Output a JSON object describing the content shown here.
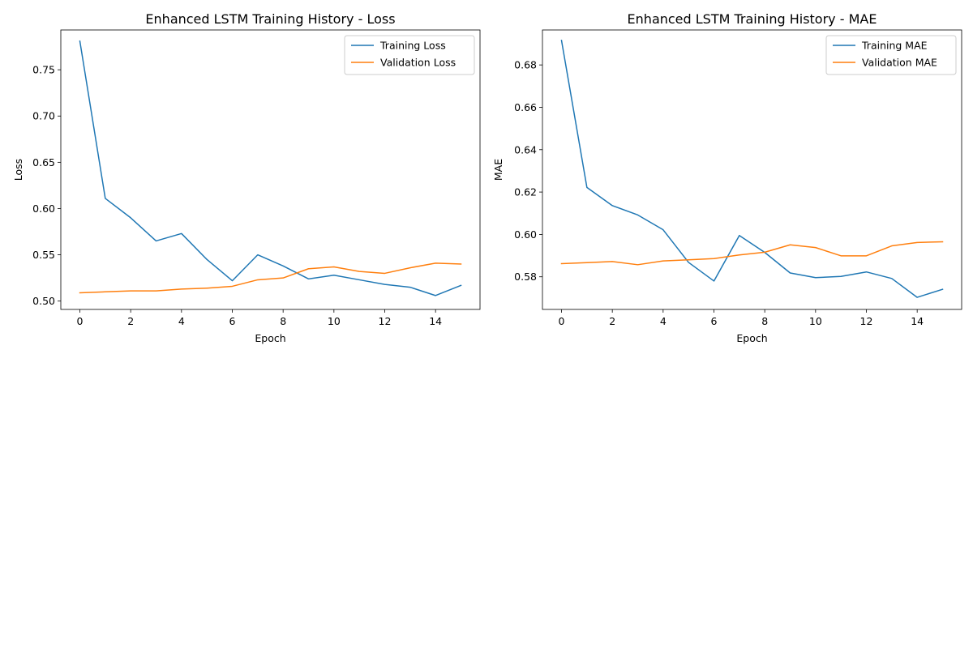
{
  "chart_data": [
    {
      "type": "line",
      "title": "Enhanced LSTM Training History - Loss",
      "xlabel": "Epoch",
      "ylabel": "Loss",
      "xlim": [
        -0.75,
        15.75
      ],
      "ylim": [
        0.491,
        0.793
      ],
      "xticks": [
        0,
        2,
        4,
        6,
        8,
        10,
        12,
        14
      ],
      "xtick_labels": [
        "0",
        "2",
        "4",
        "6",
        "8",
        "10",
        "12",
        "14"
      ],
      "yticks": [
        0.5,
        0.55,
        0.6,
        0.65,
        0.7,
        0.75
      ],
      "ytick_labels": [
        "0.50",
        "0.55",
        "0.60",
        "0.65",
        "0.70",
        "0.75"
      ],
      "grid": false,
      "legend_position": "top-right",
      "x": [
        0,
        1,
        2,
        3,
        4,
        5,
        6,
        7,
        8,
        9,
        10,
        11,
        12,
        13,
        14,
        15
      ],
      "series": [
        {
          "name": "Training Loss",
          "color": "#1f77b4",
          "values": [
            0.781,
            0.611,
            0.59,
            0.565,
            0.573,
            0.545,
            0.522,
            0.55,
            0.538,
            0.524,
            0.528,
            0.523,
            0.518,
            0.515,
            0.506,
            0.517
          ]
        },
        {
          "name": "Validation Loss",
          "color": "#ff7f0e",
          "values": [
            0.509,
            0.51,
            0.511,
            0.511,
            0.513,
            0.514,
            0.516,
            0.523,
            0.525,
            0.535,
            0.537,
            0.532,
            0.53,
            0.536,
            0.541,
            0.54
          ]
        }
      ]
    },
    {
      "type": "line",
      "title": "Enhanced LSTM Training History - MAE",
      "xlabel": "Epoch",
      "ylabel": "MAE",
      "xlim": [
        -0.75,
        15.75
      ],
      "ylim": [
        0.5646,
        0.6965
      ],
      "xticks": [
        0,
        2,
        4,
        6,
        8,
        10,
        12,
        14
      ],
      "xtick_labels": [
        "0",
        "2",
        "4",
        "6",
        "8",
        "10",
        "12",
        "14"
      ],
      "yticks": [
        0.58,
        0.6,
        0.62,
        0.64,
        0.66,
        0.68
      ],
      "ytick_labels": [
        "0.58",
        "0.60",
        "0.62",
        "0.64",
        "0.66",
        "0.68"
      ],
      "grid": false,
      "legend_position": "top-right",
      "x": [
        0,
        1,
        2,
        3,
        4,
        5,
        6,
        7,
        8,
        9,
        10,
        11,
        12,
        13,
        14,
        15
      ],
      "series": [
        {
          "name": "Training MAE",
          "color": "#1f77b4",
          "values": [
            0.6916,
            0.6222,
            0.6136,
            0.6092,
            0.6022,
            0.5868,
            0.578,
            0.5995,
            0.5915,
            0.5818,
            0.5796,
            0.5802,
            0.5823,
            0.5792,
            0.5703,
            0.5741
          ]
        },
        {
          "name": "Validation MAE",
          "color": "#ff7f0e",
          "values": [
            0.5862,
            0.5867,
            0.5872,
            0.5857,
            0.5875,
            0.588,
            0.5886,
            0.5903,
            0.5916,
            0.5951,
            0.5938,
            0.5899,
            0.5899,
            0.5946,
            0.5962,
            0.5965
          ]
        }
      ]
    }
  ]
}
